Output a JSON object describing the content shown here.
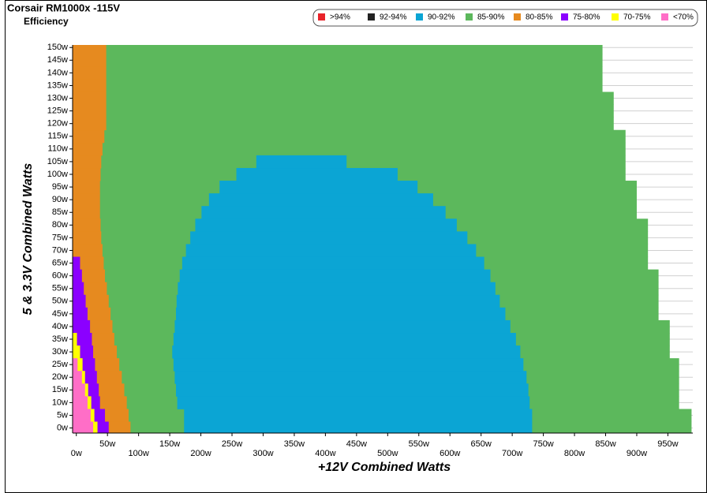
{
  "chart_data": {
    "type": "efficiency-map",
    "title": "Corsair RM1000x -115V",
    "subtitle": "Efficiency",
    "x_label": "+12V Combined Watts",
    "y_label": "5 & 3.3V Combined Watts",
    "xlim": [
      -6,
      990
    ],
    "ylim": [
      -2,
      151
    ],
    "xticks": [
      {
        "value": 0,
        "label": "0w"
      },
      {
        "value": 50,
        "label": "50w"
      },
      {
        "value": 100,
        "label": "100w"
      },
      {
        "value": 150,
        "label": "150w"
      },
      {
        "value": 200,
        "label": "200w"
      },
      {
        "value": 250,
        "label": "250w"
      },
      {
        "value": 300,
        "label": "300w"
      },
      {
        "value": 350,
        "label": "350w"
      },
      {
        "value": 400,
        "label": "400w"
      },
      {
        "value": 450,
        "label": "450w"
      },
      {
        "value": 500,
        "label": "500w"
      },
      {
        "value": 550,
        "label": "550w"
      },
      {
        "value": 600,
        "label": "600w"
      },
      {
        "value": 650,
        "label": "650w"
      },
      {
        "value": 700,
        "label": "700w"
      },
      {
        "value": 750,
        "label": "750w"
      },
      {
        "value": 800,
        "label": "800w"
      },
      {
        "value": 850,
        "label": "850w"
      },
      {
        "value": 900,
        "label": "900w"
      },
      {
        "value": 950,
        "label": "950w"
      }
    ],
    "yticks": [
      {
        "value": 0,
        "label": "0w"
      },
      {
        "value": 5,
        "label": "5w"
      },
      {
        "value": 10,
        "label": "10w"
      },
      {
        "value": 15,
        "label": "15w"
      },
      {
        "value": 20,
        "label": "20w"
      },
      {
        "value": 25,
        "label": "25w"
      },
      {
        "value": 30,
        "label": "30w"
      },
      {
        "value": 35,
        "label": "35w"
      },
      {
        "value": 40,
        "label": "40w"
      },
      {
        "value": 45,
        "label": "45w"
      },
      {
        "value": 50,
        "label": "50w"
      },
      {
        "value": 55,
        "label": "55w"
      },
      {
        "value": 60,
        "label": "60w"
      },
      {
        "value": 65,
        "label": "65w"
      },
      {
        "value": 70,
        "label": "70w"
      },
      {
        "value": 75,
        "label": "75w"
      },
      {
        "value": 80,
        "label": "80w"
      },
      {
        "value": 85,
        "label": "85w"
      },
      {
        "value": 90,
        "label": "90w"
      },
      {
        "value": 95,
        "label": "95w"
      },
      {
        "value": 100,
        "label": "100w"
      },
      {
        "value": 105,
        "label": "105w"
      },
      {
        "value": 110,
        "label": "110w"
      },
      {
        "value": 115,
        "label": "115w"
      },
      {
        "value": 120,
        "label": "120w"
      },
      {
        "value": 125,
        "label": "125w"
      },
      {
        "value": 130,
        "label": "130w"
      },
      {
        "value": 135,
        "label": "135w"
      },
      {
        "value": 140,
        "label": "140w"
      },
      {
        "value": 145,
        "label": "145w"
      },
      {
        "value": 150,
        "label": "150w"
      }
    ],
    "grid": true,
    "legend": "top-right",
    "y": [
      0,
      5,
      10,
      15,
      20,
      25,
      30,
      35,
      40,
      45,
      50,
      55,
      60,
      65,
      70,
      75,
      80,
      85,
      90,
      95,
      100,
      105,
      110,
      115,
      120,
      125,
      130,
      135,
      140,
      145,
      150
    ],
    "series": [
      {
        "name": ">94%",
        "color": "#e8232a"
      },
      {
        "name": "92-94%",
        "color": "#222222"
      },
      {
        "name": "90-92%",
        "color": "#0ba5d4",
        "start": [
          173,
          173,
          162,
          160,
          158,
          156,
          154,
          156,
          158,
          160,
          161,
          163,
          166,
          170,
          176,
          183,
          191,
          201,
          213,
          230,
          257,
          289,
          null,
          null,
          null,
          null,
          null,
          null,
          null,
          null,
          null
        ],
        "values": [
          732,
          732,
          728,
          726,
          723,
          718,
          713,
          706,
          697,
          689,
          680,
          673,
          665,
          655,
          642,
          628,
          611,
          593,
          573,
          548,
          516,
          434,
          null,
          null,
          null,
          null,
          null,
          null,
          null,
          null,
          null
        ]
      },
      {
        "name": "85-90%",
        "color": "#5cb85c",
        "values": [
          988,
          988,
          968,
          968,
          968,
          968,
          953,
          953,
          953,
          935,
          935,
          935,
          935,
          918,
          918,
          918,
          918,
          900,
          900,
          900,
          882,
          882,
          882,
          882,
          863,
          863,
          863,
          845,
          845,
          845,
          845
        ]
      },
      {
        "name": "80-85%",
        "color": "#e68a1f",
        "values": [
          87,
          84,
          81,
          77,
          73,
          69,
          65,
          61,
          58,
          55,
          52,
          49,
          46,
          44,
          42,
          40,
          39,
          38,
          38,
          38,
          39,
          40,
          42,
          45,
          48,
          48,
          48,
          48,
          48,
          48,
          48
        ]
      },
      {
        "name": "75-80%",
        "color": "#8b00ff",
        "values": [
          52,
          46,
          38,
          36,
          33,
          30,
          27,
          25,
          22,
          18,
          15,
          12,
          9,
          6,
          null,
          null,
          null,
          null,
          null,
          null,
          null,
          null,
          null,
          null,
          null,
          null,
          null,
          null,
          null,
          null,
          null
        ]
      },
      {
        "name": "70-75%",
        "color": "#ffff00",
        "values": [
          34,
          29,
          24,
          19,
          14,
          10,
          6,
          1,
          null,
          null,
          null,
          null,
          null,
          null,
          null,
          null,
          null,
          null,
          null,
          null,
          null,
          null,
          null,
          null,
          null,
          null,
          null,
          null,
          null,
          null,
          null
        ]
      },
      {
        "name": "<70%",
        "color": "#ff6ec7",
        "values": [
          27,
          23,
          18,
          14,
          9,
          2,
          null,
          null,
          null,
          null,
          null,
          null,
          null,
          null,
          null,
          null,
          null,
          null,
          null,
          null,
          null,
          null,
          null,
          null,
          null,
          null,
          null,
          null,
          null,
          null,
          null
        ]
      }
    ]
  }
}
